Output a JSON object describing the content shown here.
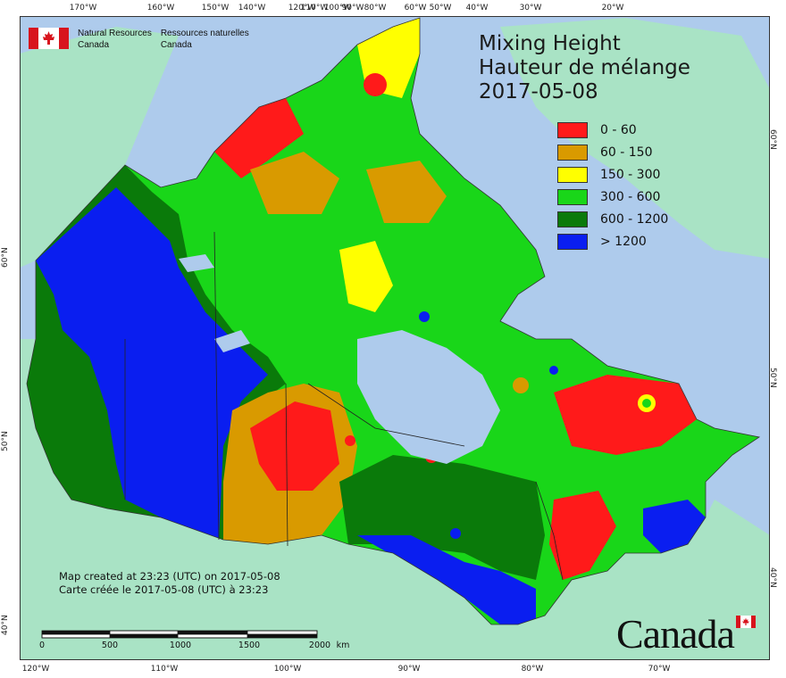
{
  "title": {
    "line1": "Mixing Height",
    "line2": "Hauteur de mélange",
    "date": "2017-05-08"
  },
  "agency": {
    "en_line1": "Natural Resources",
    "en_line2": "Canada",
    "fr_line1": "Ressources naturelles",
    "fr_line2": "Canada"
  },
  "legend": [
    {
      "label": "0 - 60",
      "color": "#ff1a1a"
    },
    {
      "label": "60 - 150",
      "color": "#d99a00"
    },
    {
      "label": "150 - 300",
      "color": "#ffff00"
    },
    {
      "label": "300 - 600",
      "color": "#19d619"
    },
    {
      "label": "600 - 1200",
      "color": "#0a7a0a"
    },
    {
      "label": "> 1200",
      "color": "#0a1ef0"
    }
  ],
  "credit": {
    "en": "Map created at 23:23 (UTC) on 2017-05-08",
    "fr": "Carte créée le 2017-05-08 (UTC) à 23:23"
  },
  "scale": {
    "labels": [
      "0",
      "500",
      "1000",
      "1500",
      "2000"
    ],
    "unit": "km"
  },
  "wordmark": "Canada",
  "ticks": {
    "top": [
      "170°W",
      "160°W",
      "150°W",
      "140°W",
      "120°W",
      "110°W",
      "100°W",
      "90°W",
      "80°W",
      "60°W",
      "50°W",
      "40°W",
      "30°W",
      "20°W"
    ],
    "bottom": [
      "120°W",
      "110°W",
      "100°W",
      "90°W",
      "80°W",
      "70°W"
    ],
    "left": [
      "60°N",
      "50°N",
      "40°N"
    ],
    "right": [
      "60°N",
      "50°N",
      "40°N"
    ]
  },
  "colors": {
    "ocean": "#aecbec",
    "land_outside": "#a9e3c5",
    "lakes": "#aecbec"
  }
}
